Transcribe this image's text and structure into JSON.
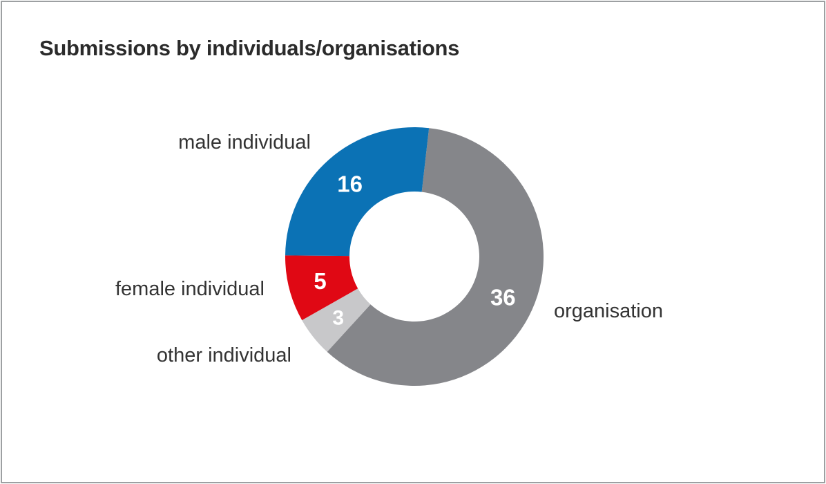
{
  "chart_data": {
    "type": "pie",
    "variant": "donut",
    "title": "Submissions by individuals/organisations",
    "total": 60,
    "start_angle_deg": 6.5,
    "direction": "clockwise",
    "grid": false,
    "legend_position": "labels-around-chart",
    "segments": [
      {
        "label": "organisation",
        "value": 36,
        "color": "#85868a",
        "value_label_color": "#ffffff"
      },
      {
        "label": "other individual",
        "value": 3,
        "color": "#c8c8ca",
        "value_label_color": "#ffffff"
      },
      {
        "label": "female individual",
        "value": 5,
        "color": "#e00814",
        "value_label_color": "#ffffff"
      },
      {
        "label": "male individual",
        "value": 16,
        "color": "#0b72b5",
        "value_label_color": "#ffffff"
      }
    ],
    "label_text_color": "#333333",
    "title_color": "#2b2b2b",
    "frame_border_color": "#9da0a2"
  }
}
